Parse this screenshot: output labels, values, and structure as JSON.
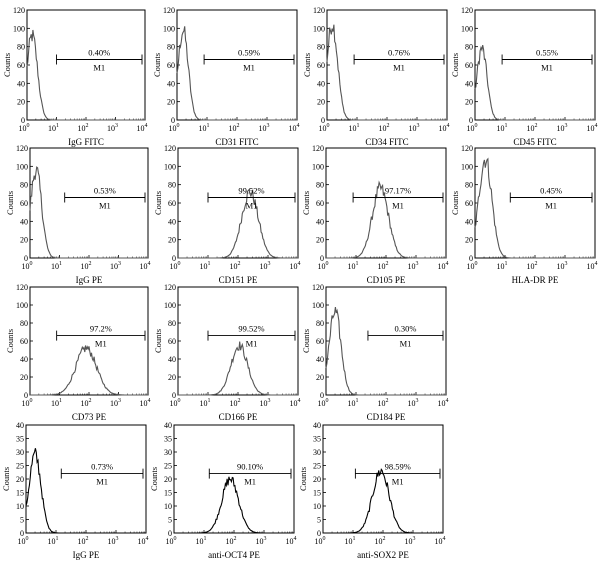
{
  "figure": {
    "description_hidden": ""
  },
  "axis": {
    "y_ticks": [
      "0",
      "20",
      "40",
      "60",
      "80",
      "100",
      "120"
    ],
    "x_ticks": [
      "10",
      "10",
      "10",
      "10",
      "10"
    ],
    "x_tick_exponents": [
      "0",
      "1",
      "2",
      "3",
      "4"
    ],
    "y_label": "Counts",
    "marker_label": "M1"
  },
  "chart_data": [
    {
      "type": "histogram",
      "xlabel": "IgG FITC",
      "ylabel": "Counts",
      "xlim": [
        1,
        10000
      ],
      "ylim": [
        0,
        120
      ],
      "x_scale": "log",
      "percent": "0.40%",
      "gate": "M1",
      "gate_range": [
        10,
        10000
      ],
      "peak": {
        "center": 1.5,
        "width": 0.18,
        "height": 92
      },
      "stroke": "#555555"
    },
    {
      "type": "histogram",
      "xlabel": "CD31 FITC",
      "ylabel": "Counts",
      "xlim": [
        1,
        10000
      ],
      "ylim": [
        0,
        120
      ],
      "x_scale": "log",
      "percent": "0.59%",
      "gate": "M1",
      "gate_range": [
        8,
        10000
      ],
      "peak": {
        "center": 1.6,
        "width": 0.17,
        "height": 98
      },
      "stroke": "#555555"
    },
    {
      "type": "histogram",
      "xlabel": "CD34 FITC",
      "ylabel": "Counts",
      "xlim": [
        1,
        10000
      ],
      "ylim": [
        0,
        120
      ],
      "x_scale": "log",
      "percent": "0.76%",
      "gate": "M1",
      "gate_range": [
        8,
        10000
      ],
      "peak": {
        "center": 1.5,
        "width": 0.18,
        "height": 105
      },
      "stroke": "#555555"
    },
    {
      "type": "histogram",
      "xlabel": "CD45 FITC",
      "ylabel": "Counts",
      "xlim": [
        1,
        10000
      ],
      "ylim": [
        0,
        120
      ],
      "x_scale": "log",
      "percent": "0.55%",
      "gate": "M1",
      "gate_range": [
        8,
        10000
      ],
      "peak": {
        "center": 1.7,
        "width": 0.17,
        "height": 78
      },
      "stroke": "#555555"
    },
    {
      "type": "histogram",
      "xlabel": "IgG PE",
      "ylabel": "Counts",
      "xlim": [
        1,
        10000
      ],
      "ylim": [
        0,
        120
      ],
      "x_scale": "log",
      "percent": "0.53%",
      "gate": "M1",
      "gate_range": [
        15,
        10000
      ],
      "peak": {
        "center": 1.6,
        "width": 0.19,
        "height": 96
      },
      "stroke": "#555555"
    },
    {
      "type": "histogram",
      "xlabel": "CD151 PE",
      "ylabel": "Counts",
      "xlim": [
        1,
        10000
      ],
      "ylim": [
        0,
        120
      ],
      "x_scale": "log",
      "percent": "99.52%",
      "gate": "M1",
      "gate_range": [
        10,
        8000
      ],
      "peak": {
        "center": 250,
        "width": 0.28,
        "height": 72
      },
      "stroke": "#555555"
    },
    {
      "type": "histogram",
      "xlabel": "CD105 PE",
      "ylabel": "Counts",
      "xlim": [
        1,
        10000
      ],
      "ylim": [
        0,
        120
      ],
      "x_scale": "log",
      "percent": "97.17%",
      "gate": "M1",
      "gate_range": [
        8,
        8000
      ],
      "peak": {
        "center": 65,
        "width": 0.27,
        "height": 76
      },
      "stroke": "#555555"
    },
    {
      "type": "histogram",
      "xlabel": "HLA-DR PE",
      "ylabel": "Counts",
      "xlim": [
        1,
        10000
      ],
      "ylim": [
        0,
        120
      ],
      "x_scale": "log",
      "percent": "0.45%",
      "gate": "M1",
      "gate_range": [
        15,
        10000
      ],
      "peak": {
        "center": 2.2,
        "width": 0.22,
        "height": 108
      },
      "stroke": "#555555"
    },
    {
      "type": "histogram",
      "xlabel": "CD73 PE",
      "ylabel": "Counts",
      "xlim": [
        1,
        10000
      ],
      "ylim": [
        0,
        120
      ],
      "x_scale": "log",
      "percent": "97.2%",
      "gate": "M1",
      "gate_range": [
        8,
        8000
      ],
      "peak": {
        "center": 80,
        "width": 0.35,
        "height": 52
      },
      "stroke": "#555555"
    },
    {
      "type": "histogram",
      "xlabel": "CD166 PE",
      "ylabel": "Counts",
      "xlim": [
        1,
        10000
      ],
      "ylim": [
        0,
        120
      ],
      "x_scale": "log",
      "percent": "99.52%",
      "gate": "M1",
      "gate_range": [
        10,
        8000
      ],
      "peak": {
        "center": 110,
        "width": 0.28,
        "height": 55
      },
      "stroke": "#555555"
    },
    {
      "type": "histogram",
      "xlabel": "CD184 PE",
      "ylabel": "Counts",
      "xlim": [
        1,
        10000
      ],
      "ylim": [
        0,
        120
      ],
      "x_scale": "log",
      "percent": "0.30%",
      "gate": "M1",
      "gate_range": [
        25,
        10000
      ],
      "peak": {
        "center": 2.0,
        "width": 0.2,
        "height": 92
      },
      "stroke": "#555555"
    },
    {
      "type": "histogram",
      "xlabel": "IgG PE",
      "ylabel": "Counts",
      "xlim": [
        1,
        10000
      ],
      "ylim": [
        0,
        40
      ],
      "x_scale": "log",
      "y_ticks": [
        "0",
        "5",
        "10",
        "15",
        "20",
        "25",
        "30",
        "35",
        "40"
      ],
      "percent": "0.73%",
      "gate": "M1",
      "gate_range": [
        15,
        10000
      ],
      "peak": {
        "center": 2.0,
        "width": 0.2,
        "height": 29
      },
      "stroke": "#000000"
    },
    {
      "type": "histogram",
      "xlabel": "anti-OCT4 PE",
      "ylabel": "Counts",
      "xlim": [
        1,
        10000
      ],
      "ylim": [
        0,
        40
      ],
      "x_scale": "log",
      "y_ticks": [
        "0",
        "5",
        "10",
        "15",
        "20",
        "25",
        "30",
        "35",
        "40"
      ],
      "percent": "90.10%",
      "gate": "M1",
      "gate_range": [
        15,
        10000
      ],
      "peak": {
        "center": 75,
        "width": 0.28,
        "height": 20
      },
      "stroke": "#000000"
    },
    {
      "type": "histogram",
      "xlabel": "anti-SOX2 PE",
      "ylabel": "Counts",
      "xlim": [
        1,
        10000
      ],
      "ylim": [
        0,
        40
      ],
      "x_scale": "log",
      "y_ticks": [
        "0",
        "5",
        "10",
        "15",
        "20",
        "25",
        "30",
        "35",
        "40"
      ],
      "percent": "98.59%",
      "gate": "M1",
      "gate_range": [
        12,
        10000
      ],
      "peak": {
        "center": 85,
        "width": 0.28,
        "height": 23
      },
      "stroke": "#000000"
    }
  ]
}
